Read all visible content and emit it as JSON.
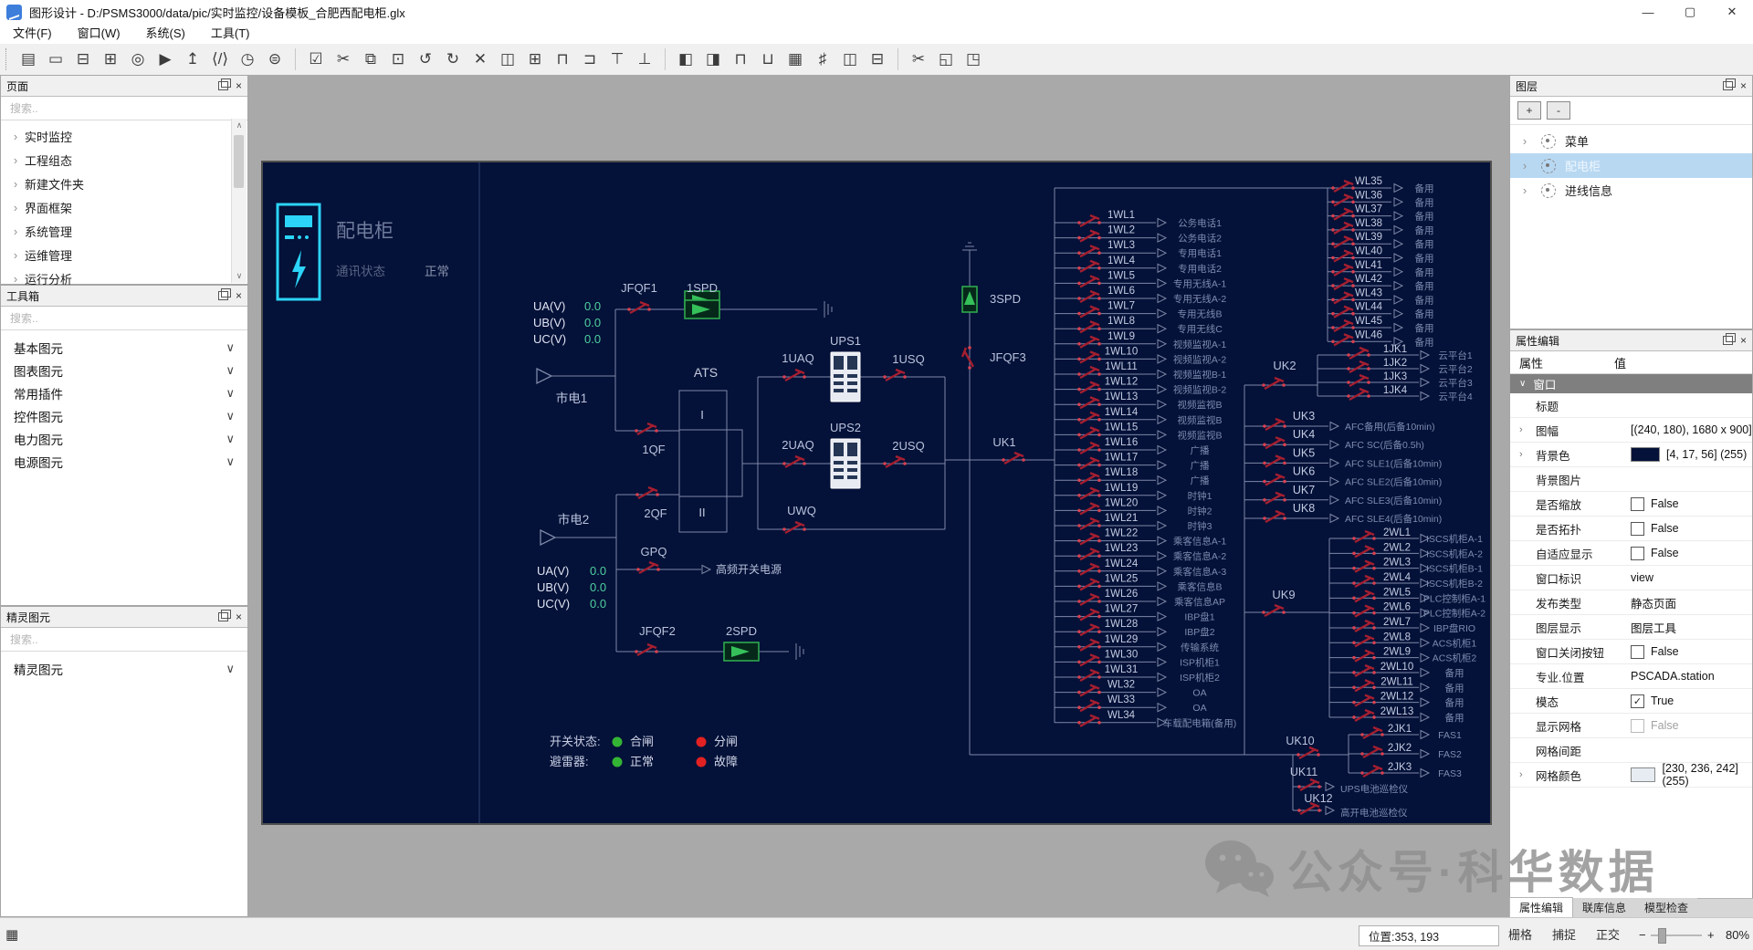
{
  "window": {
    "title": "图形设计 - D:/PSMS3000/data/pic/实时监控/设备模板_合肥西配电柜.glx",
    "controls": [
      [
        "—",
        "minimize-button"
      ],
      [
        "▢",
        "maximize-button"
      ],
      [
        "✕",
        "close-button"
      ]
    ]
  },
  "menu": {
    "items": [
      "文件(F)",
      "窗口(W)",
      "系统(S)",
      "工具(T)"
    ]
  },
  "toolbar": {
    "groups": [
      {
        "icons": [
          [
            "▤",
            "new-file"
          ],
          [
            "▭",
            "open-folder"
          ],
          [
            "⊟",
            "save"
          ],
          [
            "⊞",
            "save-as"
          ],
          [
            "◎",
            "record"
          ],
          [
            "▶",
            "run"
          ],
          [
            "↥",
            "export"
          ],
          [
            "⟨/⟩",
            "code-view"
          ],
          [
            "◷",
            "history-clock"
          ],
          [
            "⊜",
            "database"
          ]
        ]
      },
      {
        "icons": [
          [
            "☑",
            "select-check"
          ],
          [
            "✂",
            "cut"
          ],
          [
            "⧉",
            "copy"
          ],
          [
            "⊡",
            "paste"
          ],
          [
            "↺",
            "undo"
          ],
          [
            "↻",
            "refresh"
          ],
          [
            "✕",
            "delete"
          ],
          [
            "◫",
            "split-horizontal"
          ],
          [
            "⊞",
            "split-vertical"
          ],
          [
            "⊓",
            "align-top-edge"
          ],
          [
            "⊐",
            "bring-to-front"
          ],
          [
            "⊤",
            "flip-vertical"
          ],
          [
            "⊥",
            "send-to-back"
          ]
        ]
      },
      {
        "icons": [
          [
            "◧",
            "align-left"
          ],
          [
            "◨",
            "align-right"
          ],
          [
            "⊓",
            "align-top"
          ],
          [
            "⊔",
            "align-bottom"
          ],
          [
            "▦",
            "same-size"
          ],
          [
            "♯",
            "grid-snap"
          ],
          [
            "◫",
            "same-width"
          ],
          [
            "⊟",
            "same-height"
          ]
        ]
      },
      {
        "icons": [
          [
            "✂",
            "break-segment"
          ],
          [
            "◱",
            "zoom-fit"
          ],
          [
            "◳",
            "zoom-selection"
          ]
        ]
      }
    ]
  },
  "left": {
    "pages": {
      "title": "页面",
      "search_placeholder": "搜索..",
      "items": [
        "实时监控",
        "工程组态",
        "新建文件夹",
        "界面框架",
        "系统管理",
        "运维管理",
        "运行分析"
      ]
    },
    "toolbox": {
      "title": "工具箱",
      "search_placeholder": "搜索..",
      "items": [
        "基本图元",
        "图表图元",
        "常用插件",
        "控件图元",
        "电力图元",
        "电源图元"
      ]
    },
    "sprites": {
      "title": "精灵图元",
      "search_placeholder": "搜索..",
      "items": [
        "精灵图元"
      ]
    }
  },
  "layers": {
    "title": "图层",
    "add_label": "+",
    "remove_label": "-",
    "items": [
      {
        "label": "菜单",
        "selected": false
      },
      {
        "label": "配电柜",
        "selected": true
      },
      {
        "label": "进线信息",
        "selected": false
      }
    ]
  },
  "properties": {
    "title": "属性编辑",
    "col_property": "属性",
    "col_value": "值",
    "group": "窗口",
    "rows": [
      {
        "name": "标题",
        "type": "text",
        "value": ""
      },
      {
        "name": "图幅",
        "type": "text",
        "value": "[(240, 180), 1680 x 900]",
        "expand": true
      },
      {
        "name": "背景色",
        "type": "color",
        "value": "[4, 17, 56] (255)",
        "swatch": "#041138",
        "expand": true
      },
      {
        "name": "背景图片",
        "type": "text",
        "value": ""
      },
      {
        "name": "是否缩放",
        "type": "check",
        "checked": false,
        "value": "False"
      },
      {
        "name": "是否拓扑",
        "type": "check",
        "checked": false,
        "value": "False"
      },
      {
        "name": "自适应显示",
        "type": "check",
        "checked": false,
        "value": "False"
      },
      {
        "name": "窗口标识",
        "type": "text",
        "value": "view"
      },
      {
        "name": "发布类型",
        "type": "text",
        "value": "静态页面"
      },
      {
        "name": "图层显示",
        "type": "text",
        "value": "图层工具"
      },
      {
        "name": "窗口关闭按钮",
        "type": "check",
        "checked": false,
        "value": "False"
      },
      {
        "name": "专业.位置",
        "type": "text",
        "value": "PSCADA.station"
      },
      {
        "name": "模态",
        "type": "check",
        "checked": true,
        "value": "True"
      },
      {
        "name": "显示网格",
        "type": "check",
        "checked": false,
        "value": "False",
        "faded": true
      },
      {
        "name": "网格间距",
        "type": "text",
        "value": "",
        "faded": true
      },
      {
        "name": "网格颜色",
        "type": "color",
        "value": "[230, 236, 242] (255)",
        "swatch": "#e6ecf2",
        "expand": true
      }
    ],
    "tabs": [
      {
        "label": "属性编辑",
        "active": true
      },
      {
        "label": "联库信息",
        "active": false
      },
      {
        "label": "模型检查",
        "active": false
      }
    ]
  },
  "statusbar": {
    "grid_icon": "▦",
    "position": "位置:353, 193",
    "toggles": [
      "栅格",
      "捕捉",
      "正交"
    ],
    "minus": "−",
    "plus": "+",
    "zoom": "80%"
  },
  "watermark": {
    "text": "公众号·科华数据"
  },
  "diagram": {
    "title": "配电柜",
    "comm_label": "通讯状态",
    "comm_value": "正常",
    "voltage1": [
      [
        "UA(V)",
        "0.0"
      ],
      [
        "UB(V)",
        "0.0"
      ],
      [
        "UC(V)",
        "0.0"
      ]
    ],
    "voltage2": [
      [
        "UA(V)",
        "0.0"
      ],
      [
        "UB(V)",
        "0.0"
      ],
      [
        "UC(V)",
        "0.0"
      ]
    ],
    "labels": {
      "jfqf1": "JFQF1",
      "spd1": "1SPD",
      "shidian1": "市电1",
      "qf1": "1QF",
      "ats": "ATS",
      "ats_i": "I",
      "ats_ii": "II",
      "shidian2": "市电2",
      "qf2": "2QF",
      "jfqf2": "JFQF2",
      "spd2": "2SPD",
      "gpq": "GPQ",
      "gpq_out": "高频开关电源",
      "uaq1": "1UAQ",
      "ups1": "UPS1",
      "usq1": "1USQ",
      "uaq2": "2UAQ",
      "ups2": "UPS2",
      "usq2": "2USQ",
      "uwq": "UWQ",
      "spd3": "3SPD",
      "jfqf3": "JFQF3",
      "uk1": "UK1",
      "uk2": "UK2",
      "uk9": "UK9",
      "uk10": "UK10",
      "uk11": "UK11",
      "uk12": "UK12",
      "uk11_out": "UPS电池巡检仪",
      "uk12_out": "高开电池巡检仪"
    },
    "legend": {
      "switch_label": "开关状态:",
      "close": "合闸",
      "open": "分闸",
      "arrester_label": "避雷器:",
      "normal": "正常",
      "fault": "故障"
    },
    "feeders1": [
      [
        "1WL1",
        "公务电话1"
      ],
      [
        "1WL2",
        "公务电话2"
      ],
      [
        "1WL3",
        "专用电话1"
      ],
      [
        "1WL4",
        "专用电话2"
      ],
      [
        "1WL5",
        "专用无线A-1"
      ],
      [
        "1WL6",
        "专用无线A-2"
      ],
      [
        "1WL7",
        "专用无线B"
      ],
      [
        "1WL8",
        "专用无线C"
      ],
      [
        "1WL9",
        "视频监视A-1"
      ],
      [
        "1WL10",
        "视频监视A-2"
      ],
      [
        "1WL11",
        "视频监视B-1"
      ],
      [
        "1WL12",
        "视频监视B-2"
      ],
      [
        "1WL13",
        "视频监视B"
      ],
      [
        "1WL14",
        "视频监视B"
      ],
      [
        "1WL15",
        "视频监视B"
      ],
      [
        "1WL16",
        "广播"
      ],
      [
        "1WL17",
        "广播"
      ],
      [
        "1WL18",
        "广播"
      ],
      [
        "1WL19",
        "时钟1"
      ],
      [
        "1WL20",
        "时钟2"
      ],
      [
        "1WL21",
        "时钟3"
      ],
      [
        "1WL22",
        "乘客信息A-1"
      ],
      [
        "1WL23",
        "乘客信息A-2"
      ],
      [
        "1WL24",
        "乘客信息A-3"
      ],
      [
        "1WL25",
        "乘客信息B"
      ],
      [
        "1WL26",
        "乘客信息AP"
      ],
      [
        "1WL27",
        "IBP盘1"
      ],
      [
        "1WL28",
        "IBP盘2"
      ],
      [
        "1WL29",
        "传输系统"
      ],
      [
        "1WL30",
        "ISP机柜1"
      ],
      [
        "1WL31",
        "ISP机柜2"
      ],
      [
        "WL32",
        "OA"
      ],
      [
        "WL33",
        "OA"
      ],
      [
        "WL34",
        "车载配电箱(备用)"
      ]
    ],
    "spares": [
      [
        "WL35",
        "备用"
      ],
      [
        "WL36",
        "备用"
      ],
      [
        "WL37",
        "备用"
      ],
      [
        "WL38",
        "备用"
      ],
      [
        "WL39",
        "备用"
      ],
      [
        "WL40",
        "备用"
      ],
      [
        "WL41",
        "备用"
      ],
      [
        "WL42",
        "备用"
      ],
      [
        "WL43",
        "备用"
      ],
      [
        "WL44",
        "备用"
      ],
      [
        "WL45",
        "备用"
      ],
      [
        "WL46",
        "备用"
      ]
    ],
    "jk1": [
      [
        "1JK1",
        "云平台1"
      ],
      [
        "1JK2",
        "云平台2"
      ],
      [
        "1JK3",
        "云平台3"
      ],
      [
        "1JK4",
        "云平台4"
      ]
    ],
    "uk_afc": [
      [
        "UK3",
        "AFC备用(后备10min)"
      ],
      [
        "UK4",
        "AFC SC(后备0.5h)"
      ],
      [
        "UK5",
        "AFC SLE1(后备10min)"
      ],
      [
        "UK6",
        "AFC SLE2(后备10min)"
      ],
      [
        "UK7",
        "AFC SLE3(后备10min)"
      ],
      [
        "UK8",
        "AFC SLE4(后备10min)"
      ]
    ],
    "feeders2": [
      [
        "2WL1",
        "ISCS机柜A-1"
      ],
      [
        "2WL2",
        "ISCS机柜A-2"
      ],
      [
        "2WL3",
        "ISCS机柜B-1"
      ],
      [
        "2WL4",
        "ISCS机柜B-2"
      ],
      [
        "2WL5",
        "PLC控制柜A-1"
      ],
      [
        "2WL6",
        "PLC控制柜A-2"
      ],
      [
        "2WL7",
        "IBP盘RIO"
      ],
      [
        "2WL8",
        "ACS机柜1"
      ],
      [
        "2WL9",
        "ACS机柜2"
      ],
      [
        "2WL10",
        "备用"
      ],
      [
        "2WL11",
        "备用"
      ],
      [
        "2WL12",
        "备用"
      ],
      [
        "2WL13",
        "备用"
      ]
    ],
    "jk2": [
      [
        "2JK1",
        "FAS1"
      ],
      [
        "2JK2",
        "FAS2"
      ],
      [
        "2JK3",
        "FAS3"
      ]
    ],
    "colors": {
      "bg": "#041138",
      "wire": "#7e88a8",
      "label": "#b9c3dc",
      "desc": "#7d8cb0",
      "value": "#4fd0a0",
      "breaker": "#a51f30",
      "breaker_dot": "#d84050",
      "green": "#34b434",
      "red": "#e22222",
      "spd": "#2ea84e",
      "cyan": "#2bd4f8"
    }
  }
}
